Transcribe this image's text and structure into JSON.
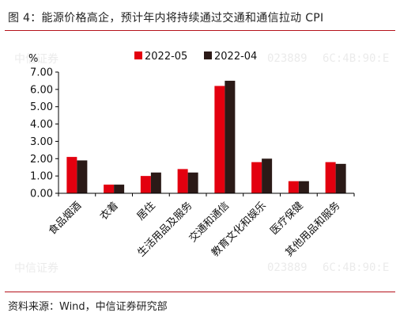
{
  "figure": {
    "title": "图 4：能源价格高企，预计年内将持续通过交通和通信拉动 CPI",
    "source": "资料来源：Wind，中信证券研究部",
    "watermark": {
      "brand": "中信证券",
      "code": "023889",
      "mac": "6C:4B:90:E"
    }
  },
  "chart_data": {
    "type": "bar",
    "title": "",
    "xlabel": "",
    "ylabel": "%",
    "ylim": [
      0,
      7
    ],
    "yticks": [
      "0.00",
      "1.00",
      "2.00",
      "3.00",
      "4.00",
      "5.00",
      "6.00",
      "7.00"
    ],
    "categories": [
      "食品烟酒",
      "衣着",
      "居住",
      "生活用品及服务",
      "交通和通信",
      "教育文化和娱乐",
      "医疗保健",
      "其他用品和服务"
    ],
    "series": [
      {
        "name": "2022-05",
        "color": "#e3000f",
        "values": [
          2.1,
          0.5,
          1.0,
          1.4,
          6.2,
          1.8,
          0.7,
          1.8
        ]
      },
      {
        "name": "2022-04",
        "color": "#2b1a17",
        "values": [
          1.9,
          0.5,
          1.2,
          1.2,
          6.5,
          2.0,
          0.7,
          1.7
        ]
      }
    ],
    "legend": "top-center",
    "grid": false
  }
}
